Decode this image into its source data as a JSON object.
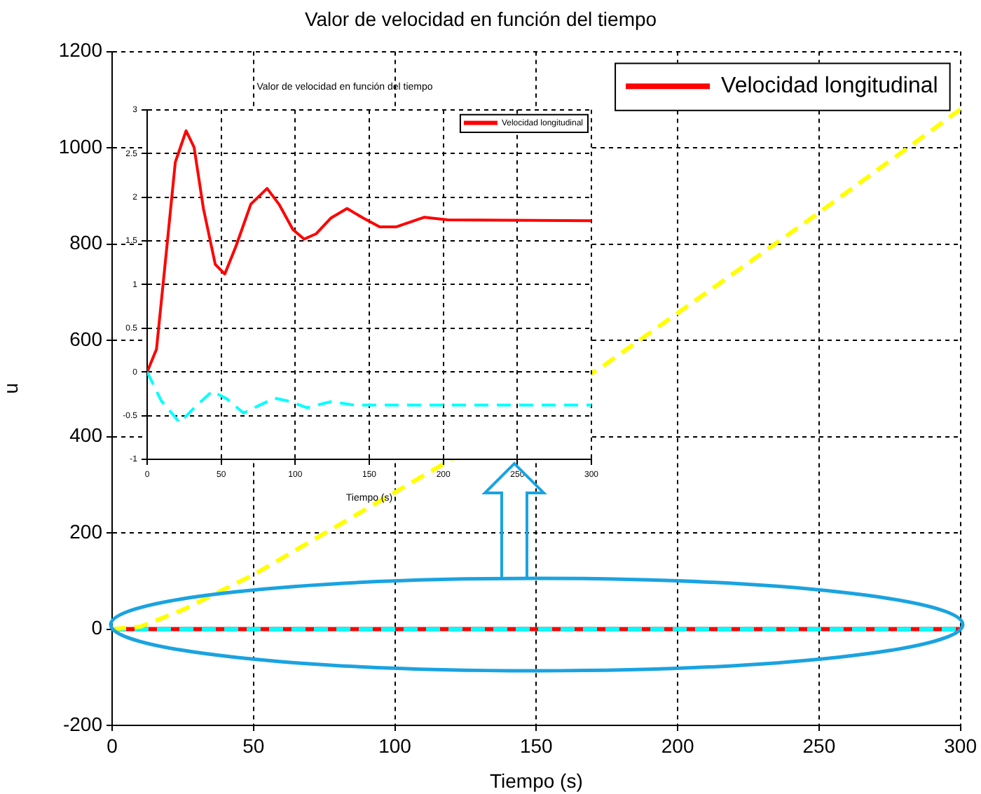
{
  "chart_data": [
    {
      "type": "line",
      "title": "Valor de velocidad en función del tiempo",
      "xlabel": "Tiempo (s)",
      "ylabel": "u",
      "xlim": [
        0,
        300
      ],
      "xticks": [
        0,
        50,
        100,
        150,
        200,
        250,
        300
      ],
      "ylim": [
        -200,
        1200
      ],
      "yticks": [
        -200,
        0,
        200,
        400,
        600,
        800,
        1000,
        1200
      ],
      "grid": true,
      "legend": "top right",
      "marker": "none",
      "series": [
        {
          "name": "Velocidad longitudinal",
          "color": "#ff0000",
          "line_style": "solid",
          "x": [
            0,
            300
          ],
          "values": [
            0,
            0
          ]
        },
        {
          "color": "#00ffff",
          "line_style": "dashed",
          "x": [
            0,
            300
          ],
          "values": [
            0,
            0
          ]
        },
        {
          "color": "#ffff00",
          "line_style": "dashed",
          "x": [
            0,
            10,
            25,
            50,
            118,
            173,
            249,
            300
          ],
          "values": [
            0,
            5,
            40,
            113,
            346,
            544,
            861,
            1080
          ]
        }
      ]
    },
    {
      "type": "line",
      "title": "Valor de velocidad en función del tiempo",
      "xlabel": "Tiempo (s)",
      "xlim": [
        0,
        300
      ],
      "xticks": [
        0,
        50,
        100,
        150,
        200,
        250,
        300
      ],
      "ylim": [
        -1,
        3
      ],
      "yticks": [
        -1,
        -0.5,
        0,
        0.5,
        1,
        1.5,
        2,
        2.5,
        3
      ],
      "grid": true,
      "legend": "top right",
      "marker": "none",
      "series": [
        {
          "name": "Velocidad longitudinal",
          "color": "#ff0000",
          "line_style": "solid",
          "x": [
            0,
            6.3,
            12.7,
            19,
            26.3,
            31.7,
            38,
            46,
            52.4,
            60,
            70,
            81,
            89,
            98.4,
            106,
            114,
            124,
            135,
            146,
            157,
            168,
            187,
            203,
            300
          ],
          "values": [
            0,
            0.26,
            1.33,
            2.4,
            2.76,
            2.57,
            1.87,
            1.23,
            1.12,
            1.44,
            1.92,
            2.1,
            1.92,
            1.63,
            1.52,
            1.58,
            1.76,
            1.87,
            1.76,
            1.66,
            1.66,
            1.77,
            1.74,
            1.73
          ]
        },
        {
          "color": "#00ffff",
          "line_style": "dashed",
          "x": [
            0,
            9.5,
            22,
            33,
            44,
            54,
            65,
            76,
            86,
            97,
            108,
            124,
            140,
            165,
            300
          ],
          "values": [
            0,
            -0.33,
            -0.58,
            -0.39,
            -0.22,
            -0.31,
            -0.47,
            -0.38,
            -0.3,
            -0.34,
            -0.41,
            -0.34,
            -0.38,
            -0.38,
            -0.38
          ]
        }
      ]
    }
  ]
}
